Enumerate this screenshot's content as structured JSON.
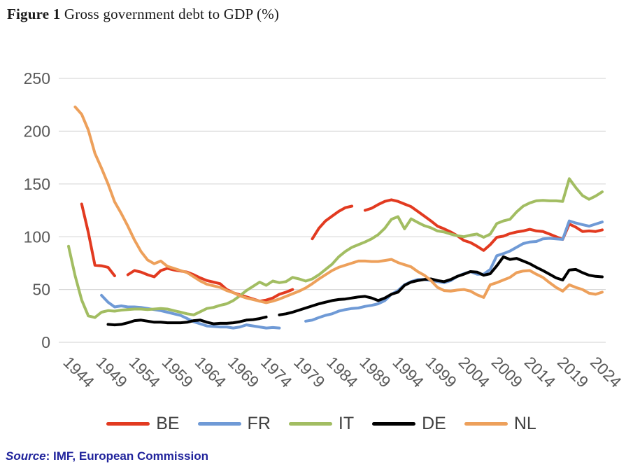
{
  "figure": {
    "label": "Figure 1",
    "title": " Gross government debt to GDP (%)"
  },
  "source": {
    "prefix": "Source",
    "text": ": IMF, European Commission"
  },
  "chart_data": {
    "type": "line",
    "title": "Gross government debt to GDP (%)",
    "xlabel": "",
    "ylabel": "",
    "grid": "horizontal",
    "legend_position": "bottom",
    "ylim": [
      0,
      250
    ],
    "y_ticks": [
      0,
      50,
      100,
      150,
      200,
      250
    ],
    "x_label_ticks": [
      1944,
      1949,
      1954,
      1959,
      1964,
      1969,
      1974,
      1979,
      1984,
      1989,
      1994,
      1999,
      2004,
      2009,
      2014,
      2019,
      2024
    ],
    "x": [
      1944,
      1945,
      1946,
      1947,
      1948,
      1949,
      1950,
      1951,
      1952,
      1953,
      1954,
      1955,
      1956,
      1957,
      1958,
      1959,
      1960,
      1961,
      1962,
      1963,
      1964,
      1965,
      1966,
      1967,
      1968,
      1969,
      1970,
      1971,
      1972,
      1973,
      1974,
      1975,
      1976,
      1977,
      1978,
      1979,
      1980,
      1981,
      1982,
      1983,
      1984,
      1985,
      1986,
      1987,
      1988,
      1989,
      1990,
      1991,
      1992,
      1993,
      1994,
      1995,
      1996,
      1997,
      1998,
      1999,
      2000,
      2001,
      2002,
      2003,
      2004,
      2005,
      2006,
      2007,
      2008,
      2009,
      2010,
      2011,
      2012,
      2013,
      2014,
      2015,
      2016,
      2017,
      2018,
      2019,
      2020,
      2021,
      2022,
      2023,
      2024,
      2025
    ],
    "series": [
      {
        "name": "BE",
        "color": "#e23a20",
        "values": [
          null,
          null,
          131,
          104,
          73,
          72.5,
          71,
          63,
          null,
          64,
          68,
          66.5,
          64,
          62,
          68,
          70,
          68.5,
          67.5,
          66.5,
          64,
          61,
          58.5,
          57,
          55.5,
          50,
          47,
          45,
          43,
          41,
          39,
          40,
          42,
          45.5,
          47.5,
          50,
          null,
          null,
          98,
          108,
          115,
          119.5,
          124,
          127.5,
          129,
          null,
          125,
          127,
          130.5,
          133.5,
          135,
          133.5,
          131,
          128.5,
          124,
          119.5,
          115,
          110,
          107.5,
          104.5,
          101,
          96.5,
          94.5,
          91,
          87,
          92.5,
          99.5,
          100.5,
          103,
          104.5,
          105.5,
          107,
          105.5,
          105,
          102.5,
          100,
          97.5,
          112,
          109,
          105,
          105.5,
          105,
          106.5
        ]
      },
      {
        "name": "FR",
        "color": "#6f9ad6",
        "values": [
          null,
          null,
          null,
          null,
          null,
          44.5,
          38,
          33.5,
          34.5,
          33.5,
          33.5,
          33,
          32,
          31,
          30,
          28.5,
          27,
          25.5,
          22.5,
          19.5,
          17.5,
          15.5,
          15,
          14.5,
          14.5,
          13.5,
          14.5,
          16.5,
          15.5,
          14.5,
          13.5,
          14,
          13.5,
          null,
          null,
          null,
          20,
          21,
          23.5,
          25.5,
          27,
          29.5,
          31,
          32,
          32.5,
          34,
          35,
          36.5,
          39.5,
          45.5,
          49,
          54.5,
          57.5,
          59.5,
          59.5,
          58.5,
          57.5,
          56.5,
          58.5,
          62.5,
          65,
          67,
          64.5,
          64.5,
          69,
          82,
          84,
          86.5,
          90,
          93.5,
          95,
          95.5,
          98,
          98.5,
          98,
          97.5,
          115,
          113,
          111.5,
          110,
          112,
          114
        ]
      },
      {
        "name": "IT",
        "color": "#a2bd62",
        "values": [
          91,
          63,
          40,
          25,
          23.5,
          28.5,
          30,
          29.5,
          30.5,
          31,
          31.5,
          31.5,
          31,
          31.5,
          32,
          31.5,
          30,
          28.5,
          27,
          26,
          29,
          32,
          33,
          35,
          36.5,
          39.5,
          44,
          49,
          53,
          57,
          54,
          58,
          56.5,
          57.5,
          61.5,
          60,
          58,
          60,
          64,
          69,
          74,
          81,
          86,
          90,
          92.5,
          95,
          98,
          102,
          108,
          116.5,
          119,
          107.5,
          117,
          113.5,
          110.5,
          108.5,
          105.5,
          104.5,
          102.5,
          101,
          100,
          101.5,
          102.5,
          99.5,
          102.5,
          112.5,
          115,
          116.5,
          123.5,
          129,
          132,
          134,
          134.5,
          134,
          134,
          133.5,
          155,
          146.5,
          139,
          135.5,
          138.5,
          142.5
        ]
      },
      {
        "name": "DE",
        "color": "#000000",
        "values": [
          null,
          null,
          null,
          null,
          null,
          null,
          17,
          16.5,
          17,
          18.5,
          20.5,
          21,
          20,
          19,
          19,
          18.5,
          18.5,
          18.5,
          19,
          20.5,
          21,
          19,
          17.5,
          18,
          18,
          18.5,
          19.5,
          21,
          21.5,
          22.5,
          24,
          null,
          26,
          27,
          28.5,
          30.5,
          32.5,
          34.5,
          36.5,
          38,
          39.5,
          40.5,
          41,
          42,
          43,
          43.5,
          42,
          39.5,
          42,
          45.5,
          47.5,
          54,
          57,
          58.5,
          59.5,
          60,
          58.5,
          57.5,
          59.5,
          62.5,
          64.5,
          67,
          66.5,
          63.5,
          65,
          72.5,
          81,
          78.5,
          79.5,
          77,
          74.5,
          71,
          68,
          64.5,
          61,
          59,
          68.5,
          69,
          66,
          63.5,
          62.5,
          62
        ]
      },
      {
        "name": "NL",
        "color": "#eda05b",
        "values": [
          null,
          223,
          216,
          201,
          179,
          165,
          150,
          133,
          122,
          110,
          97,
          86,
          78,
          74.5,
          77,
          72,
          70,
          68,
          66,
          62,
          58,
          55,
          53.5,
          52,
          49,
          47,
          44,
          42,
          40.5,
          39,
          37.5,
          39,
          41,
          43.5,
          46,
          48.5,
          51.5,
          55.5,
          60,
          64,
          68,
          71,
          73,
          75,
          77,
          77,
          76.5,
          76.5,
          77.5,
          78.5,
          75.5,
          73.5,
          71.5,
          67,
          63.5,
          58.5,
          52,
          49,
          48.5,
          49.5,
          50,
          48.5,
          45,
          42.5,
          54.5,
          56.5,
          59,
          61.5,
          66,
          67.5,
          68,
          64.5,
          61.5,
          56.5,
          52,
          48.5,
          54.5,
          52,
          50,
          46.5,
          45.5,
          47.5
        ]
      }
    ],
    "style": {
      "grid_color": "#d9d9d9",
      "axis_label_color": "#595959",
      "legend_text_color": "#404040"
    }
  }
}
